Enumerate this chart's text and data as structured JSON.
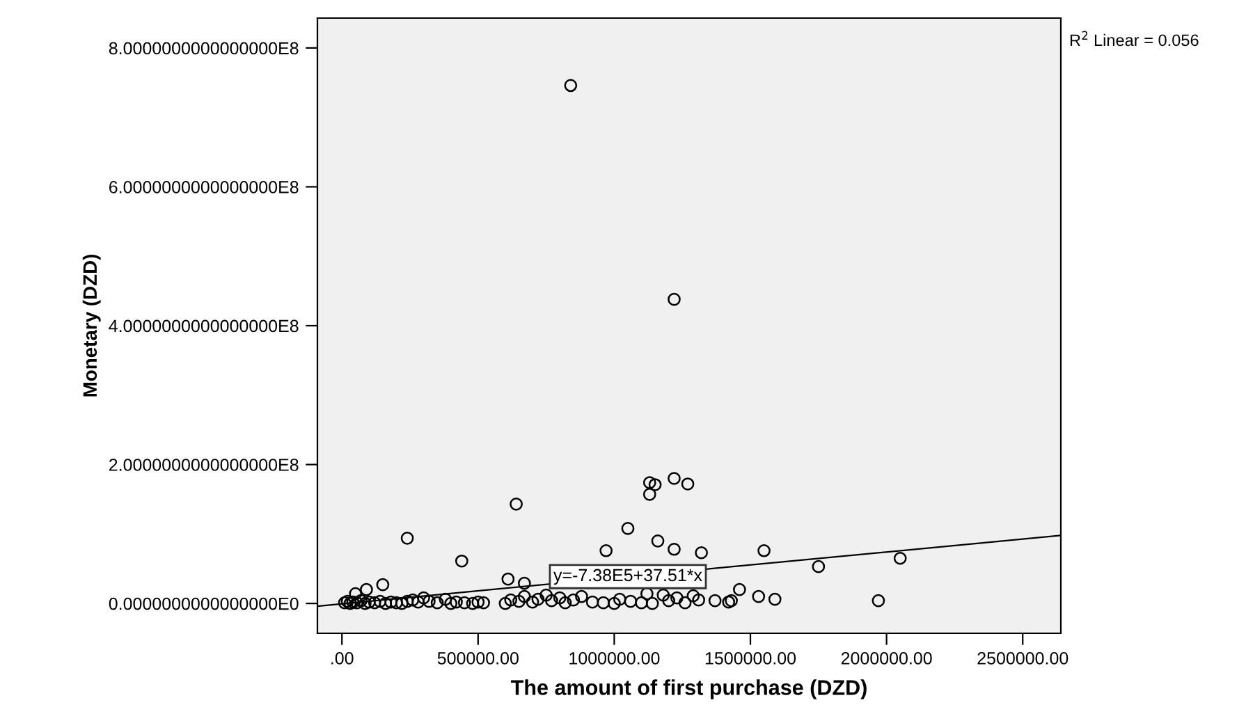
{
  "chart_data": {
    "type": "scatter",
    "xlabel": "The amount of first purchase (DZD)",
    "ylabel": "Monetary (DZD)",
    "annotations": [
      {
        "text": "y=-7.38E5+37.51*x",
        "x": 1050000,
        "y": 38600000
      },
      "R$^{2}$ Linear = 0.056"
    ],
    "xlim": [
      -90000,
      2640000
    ],
    "ylim": [
      -43000000,
      843000000
    ],
    "xticks": [
      {
        "value": 0,
        "label": ".00"
      },
      {
        "value": 500000,
        "label": "500000.00"
      },
      {
        "value": 1000000,
        "label": "1000000.00"
      },
      {
        "value": 1500000,
        "label": "1500000.00"
      },
      {
        "value": 2000000,
        "label": "2000000.00"
      },
      {
        "value": 2500000,
        "label": "2500000.00"
      }
    ],
    "yticks": [
      {
        "value": 0,
        "label": "0.0000000000000000E0"
      },
      {
        "value": 200000000,
        "label": "2.0000000000000000E8"
      },
      {
        "value": 400000000,
        "label": "4.0000000000000000E8"
      },
      {
        "value": 600000000,
        "label": "6.0000000000000000E8"
      },
      {
        "value": 800000000,
        "label": "8.0000000000000000E8"
      }
    ],
    "grid": false,
    "series": [
      {
        "marker": "circle",
        "color": "#000000",
        "x": [
          840000,
          1220000,
          1130000,
          1150000,
          1220000,
          1270000,
          1130000,
          640000,
          1050000,
          240000,
          440000,
          150000,
          90000,
          50000,
          610000,
          670000,
          970000,
          1160000,
          1220000,
          1320000,
          1550000,
          1750000,
          2050000,
          1970000,
          1460000,
          1430000,
          1530000,
          1590000,
          1370000,
          1420000,
          10000,
          20000,
          30000,
          40000,
          55000,
          70000,
          85000,
          100000,
          120000,
          140000,
          160000,
          180000,
          200000,
          220000,
          240000,
          260000,
          280000,
          300000,
          320000,
          350000,
          380000,
          400000,
          420000,
          450000,
          480000,
          500000,
          520000,
          600000,
          620000,
          650000,
          670000,
          700000,
          720000,
          750000,
          770000,
          800000,
          820000,
          850000,
          880000,
          920000,
          960000,
          1000000,
          1020000,
          1060000,
          1100000,
          1120000,
          1140000,
          1180000,
          1200000,
          1230000,
          1260000,
          1290000,
          1310000
        ],
        "values": [
          746000000,
          438000000,
          174000000,
          171000000,
          180000000,
          172000000,
          157000000,
          143000000,
          108000000,
          94000000,
          61000000,
          27000000,
          20000000,
          14000000,
          35000000,
          29000000,
          76000000,
          90000000,
          78000000,
          73000000,
          76000000,
          53000000,
          65000000,
          4000000,
          20000000,
          4000000,
          10000000,
          6000000,
          4000000,
          2000000,
          1000000,
          3000000,
          0,
          2000000,
          1000000,
          4000000,
          0,
          2000000,
          1000000,
          3000000,
          0,
          2000000,
          1000000,
          0,
          3000000,
          5000000,
          2000000,
          8000000,
          3000000,
          1000000,
          6000000,
          0,
          2000000,
          1000000,
          0,
          2000000,
          1000000,
          0,
          5000000,
          3000000,
          10000000,
          2000000,
          6000000,
          12000000,
          4000000,
          8000000,
          1000000,
          5000000,
          10000000,
          2000000,
          1000000,
          0,
          6000000,
          3000000,
          1000000,
          14000000,
          0,
          12000000,
          4000000,
          8000000,
          1000000,
          11000000,
          5000000
        ]
      },
      {
        "type": "line",
        "marker": "none",
        "color": "#000000",
        "x": [
          -90000,
          2640000
        ],
        "values": [
          -4000000,
          98000000
        ]
      }
    ]
  }
}
